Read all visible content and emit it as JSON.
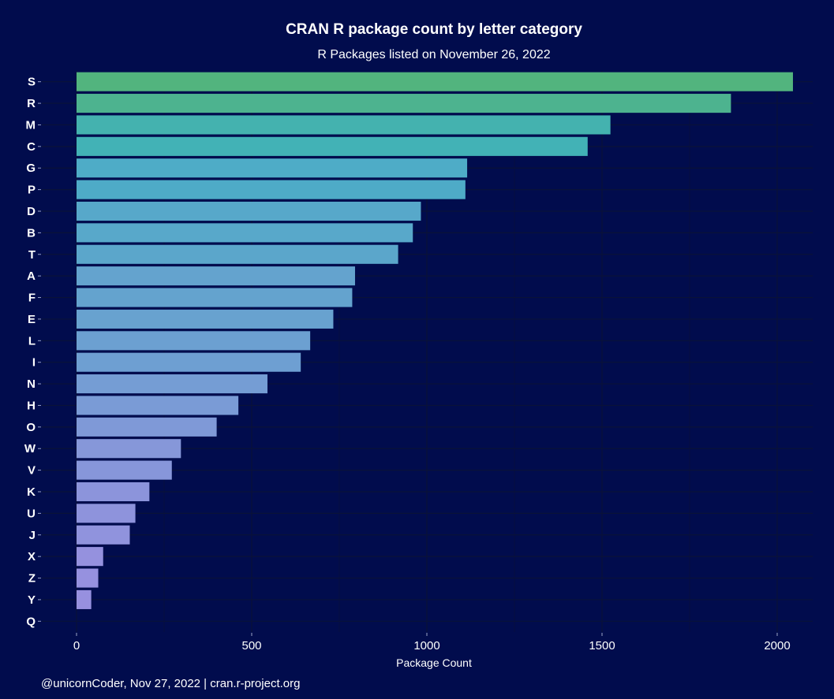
{
  "chart_data": {
    "type": "bar",
    "orientation": "horizontal",
    "title": "CRAN R package count by letter category",
    "subtitle": "R Packages listed on November 26, 2022",
    "xlabel": "Package Count",
    "ylabel": "",
    "caption": "@unicornCoder, Nov 27, 2022 | cran.r-project.org",
    "categories": [
      "S",
      "R",
      "M",
      "C",
      "G",
      "P",
      "D",
      "B",
      "T",
      "A",
      "F",
      "E",
      "L",
      "I",
      "N",
      "H",
      "O",
      "W",
      "V",
      "K",
      "U",
      "J",
      "X",
      "Z",
      "Y",
      "Q"
    ],
    "values": [
      2045,
      1868,
      1524,
      1459,
      1115,
      1110,
      983,
      960,
      918,
      795,
      787,
      733,
      667,
      640,
      545,
      462,
      400,
      298,
      272,
      208,
      168,
      152,
      76,
      62,
      42,
      0
    ],
    "xlim": [
      0,
      2050
    ],
    "xticks": [
      0,
      500,
      1000,
      1500,
      2000
    ],
    "xtick_labels": [
      "0",
      "500",
      "1000",
      "1500",
      "2000"
    ],
    "grid": true,
    "legend": "none",
    "colors": {
      "background": "#010c4d",
      "bar_start": "#52b47e",
      "bar_mid": "#3fb1c2",
      "bar_end": "#9a8fe0",
      "text": "#ffffff"
    }
  }
}
